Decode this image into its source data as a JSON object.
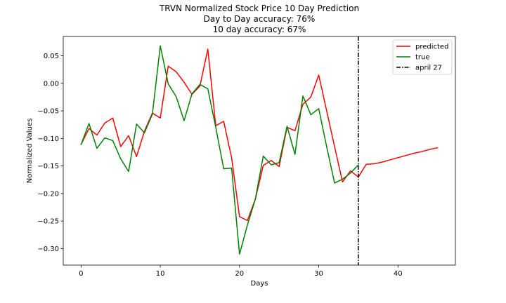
{
  "chart_data": {
    "type": "line",
    "title_lines": [
      "TRVN Normalized Stock Price 10 Day Prediction",
      "Day to Day accuracy: 76%",
      "10 day accuracy: 67%"
    ],
    "xlabel": "Days",
    "ylabel": "Normalized Values",
    "xlim": [
      -2.25,
      47.25
    ],
    "ylim": [
      -0.33,
      0.085
    ],
    "xticks": [
      0,
      10,
      20,
      30,
      40
    ],
    "yticks": [
      0.05,
      0.0,
      -0.05,
      -0.1,
      -0.15,
      -0.2,
      -0.25,
      -0.3
    ],
    "ytick_labels": [
      "0.05",
      "0.00",
      "−0.05",
      "−0.10",
      "−0.15",
      "−0.20",
      "−0.25",
      "−0.30"
    ],
    "grid": false,
    "legend_position": "top-right",
    "series": [
      {
        "name": "predicted",
        "color": "#ff0000",
        "x": [
          0,
          1,
          2,
          3,
          4,
          5,
          6,
          7,
          8,
          9,
          10,
          11,
          12,
          13,
          14,
          15,
          16,
          17,
          18,
          19,
          20,
          21,
          22,
          23,
          24,
          25,
          26,
          27,
          28,
          29,
          30,
          31,
          32,
          33,
          34,
          35,
          36,
          37,
          38,
          39,
          40,
          41,
          42,
          43,
          44,
          45
        ],
        "y": [
          -0.111,
          -0.082,
          -0.094,
          -0.072,
          -0.063,
          -0.115,
          -0.095,
          -0.133,
          -0.087,
          -0.054,
          -0.063,
          0.031,
          0.021,
          0.002,
          -0.02,
          -0.005,
          0.062,
          -0.077,
          -0.069,
          -0.135,
          -0.242,
          -0.249,
          -0.21,
          -0.149,
          -0.14,
          -0.151,
          -0.08,
          -0.086,
          -0.038,
          -0.025,
          0.015,
          -0.05,
          -0.115,
          -0.179,
          -0.159,
          -0.17,
          -0.147,
          -0.146,
          -0.143,
          -0.139,
          -0.135,
          -0.131,
          -0.127,
          -0.124,
          -0.12,
          -0.117
        ]
      },
      {
        "name": "true",
        "color": "#008000",
        "x": [
          0,
          1,
          2,
          3,
          4,
          5,
          6,
          7,
          8,
          9,
          10,
          11,
          12,
          13,
          14,
          15,
          16,
          17,
          18,
          19,
          20,
          21,
          22,
          23,
          24,
          25,
          26,
          27,
          28,
          29,
          30,
          31,
          32,
          33,
          34,
          35
        ],
        "y": [
          -0.111,
          -0.073,
          -0.118,
          -0.099,
          -0.104,
          -0.137,
          -0.16,
          -0.074,
          -0.09,
          -0.056,
          0.068,
          -0.001,
          -0.024,
          -0.068,
          -0.019,
          -0.002,
          -0.01,
          -0.08,
          -0.155,
          -0.154,
          -0.31,
          -0.257,
          -0.21,
          -0.132,
          -0.148,
          -0.144,
          -0.078,
          -0.129,
          -0.023,
          -0.057,
          -0.046,
          -0.115,
          -0.181,
          -0.174,
          -0.163,
          -0.148
        ]
      }
    ],
    "vline": {
      "name": "april 27",
      "x": 35,
      "color": "#000000"
    }
  }
}
